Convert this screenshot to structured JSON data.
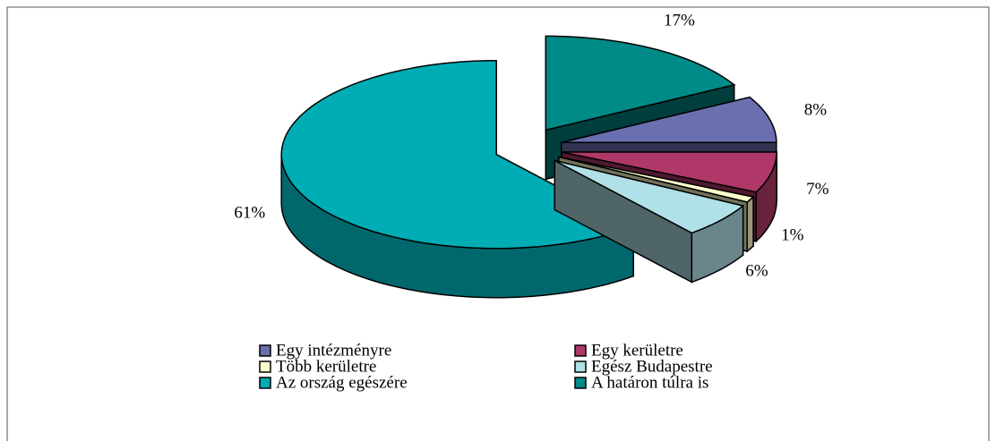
{
  "chart_data": {
    "type": "pie",
    "categories": [
      "Egy intézményre",
      "Egy kerületre",
      "Több kerületre",
      "Egész Budapestre",
      "Az ország egészére",
      "A határon túlra is"
    ],
    "values": [
      8,
      7,
      1,
      6,
      61,
      17
    ],
    "value_labels": [
      "8%",
      "7%",
      "1%",
      "6%",
      "61%",
      "17%"
    ],
    "colors": [
      "#6a6fb0",
      "#b03868",
      "#ffffcc",
      "#b0e0e8",
      "#00adb5",
      "#008a88"
    ],
    "legend": "bottom"
  }
}
